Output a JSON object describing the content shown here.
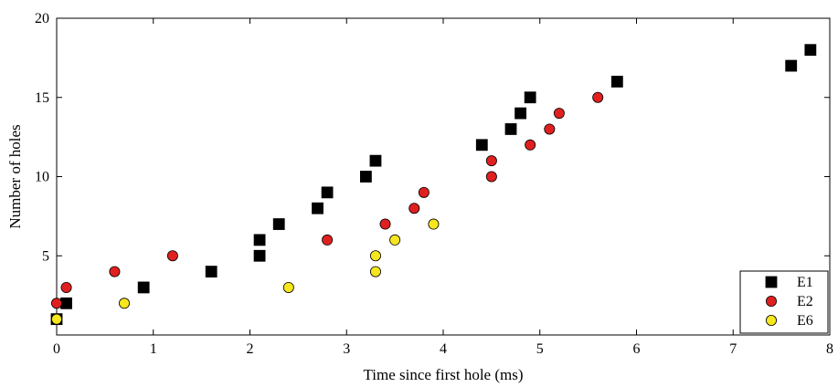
{
  "chart_data": {
    "type": "scatter",
    "xlabel": "Time since first hole (ms)",
    "ylabel": "Number of holes",
    "xlim": [
      0,
      8
    ],
    "ylim": [
      0,
      20
    ],
    "xticks": [
      "0",
      "1",
      "2",
      "3",
      "4",
      "5",
      "6",
      "7",
      "8"
    ],
    "yticks": [
      "5",
      "10",
      "15",
      "20"
    ],
    "grid": false,
    "legend": "bottom-right",
    "series": [
      {
        "name": "E1",
        "marker": "square",
        "color": "#000000",
        "points": [
          [
            0,
            1
          ],
          [
            0.1,
            2
          ],
          [
            0.9,
            3
          ],
          [
            1.6,
            4
          ],
          [
            2.1,
            5
          ],
          [
            2.1,
            6
          ],
          [
            2.3,
            7
          ],
          [
            2.7,
            8
          ],
          [
            2.8,
            9
          ],
          [
            3.2,
            10
          ],
          [
            3.3,
            11
          ],
          [
            4.4,
            12
          ],
          [
            4.7,
            13
          ],
          [
            4.8,
            14
          ],
          [
            4.9,
            15
          ],
          [
            5.8,
            16
          ],
          [
            7.6,
            17
          ],
          [
            7.8,
            18
          ]
        ]
      },
      {
        "name": "E2",
        "marker": "circle",
        "color": "#e02020",
        "points": [
          [
            0,
            1
          ],
          [
            0,
            2
          ],
          [
            0.1,
            3
          ],
          [
            0.6,
            4
          ],
          [
            1.2,
            5
          ],
          [
            2.8,
            6
          ],
          [
            3.4,
            7
          ],
          [
            3.7,
            8
          ],
          [
            3.8,
            9
          ],
          [
            4.5,
            10
          ],
          [
            4.5,
            11
          ],
          [
            4.9,
            12
          ],
          [
            5.1,
            13
          ],
          [
            5.2,
            14
          ],
          [
            5.6,
            15
          ]
        ]
      },
      {
        "name": "E6",
        "marker": "circle",
        "color": "#f5e61e",
        "points": [
          [
            0,
            1
          ],
          [
            0.7,
            2
          ],
          [
            2.4,
            3
          ],
          [
            3.3,
            4
          ],
          [
            3.3,
            5
          ],
          [
            3.5,
            6
          ],
          [
            3.9,
            7
          ]
        ]
      }
    ]
  }
}
